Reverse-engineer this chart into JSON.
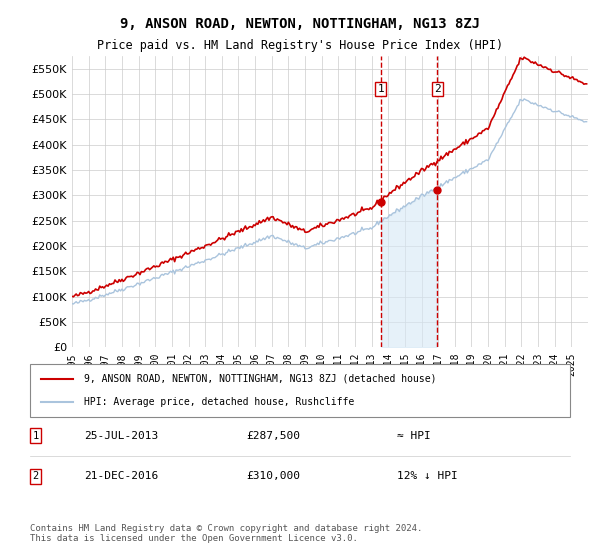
{
  "title": "9, ANSON ROAD, NEWTON, NOTTINGHAM, NG13 8ZJ",
  "subtitle": "Price paid vs. HM Land Registry's House Price Index (HPI)",
  "background_color": "#ffffff",
  "grid_color": "#cccccc",
  "transaction1": {
    "date": "25-JUL-2013",
    "price": 287500,
    "label": "1",
    "vs_hpi": "≈ HPI"
  },
  "transaction2": {
    "date": "21-DEC-2016",
    "price": 310000,
    "label": "2",
    "vs_hpi": "12% ↓ HPI"
  },
  "legend_line1": "9, ANSON ROAD, NEWTON, NOTTINGHAM, NG13 8ZJ (detached house)",
  "legend_line2": "HPI: Average price, detached house, Rushcliffe",
  "footnote": "Contains HM Land Registry data © Crown copyright and database right 2024.\nThis data is licensed under the Open Government Licence v3.0.",
  "hpi_color": "#aac4dd",
  "price_color": "#cc0000",
  "dashed_line_color": "#cc0000",
  "shade_color": "#d6e8f5",
  "ylim_min": 0,
  "ylim_max": 575000,
  "xstart_year": 1995,
  "xend_year": 2026
}
